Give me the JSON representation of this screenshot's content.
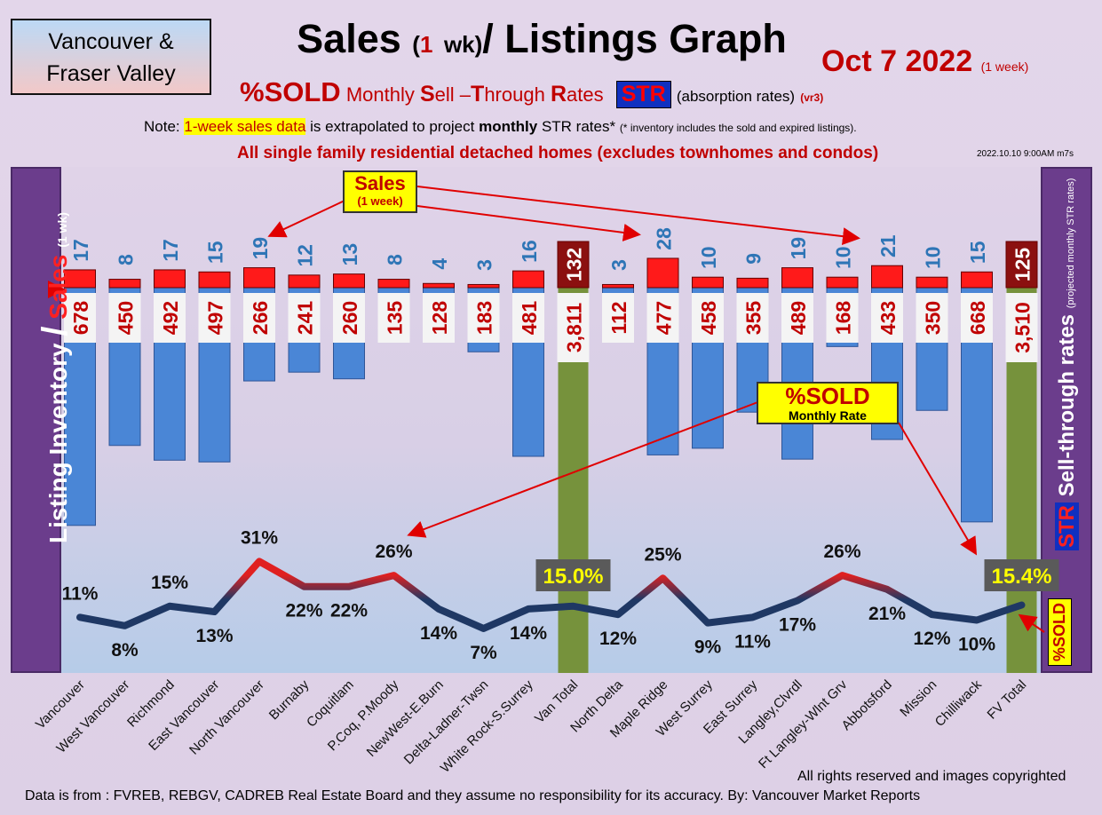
{
  "header": {
    "region_line1": "Vancouver &",
    "region_line2": "Fraser Valley",
    "title_main": "Sales",
    "title_paren_open": "(",
    "title_paren_num": "1",
    "title_paren_wk": "wk)",
    "title_rest": "/ Listings Graph",
    "date": "Oct 7  2022",
    "date_note": "(1 week)",
    "subtitle_sold": "%SOLD",
    "subtitle_monthly": "Monthly",
    "subtitle_sell": "ell –",
    "subtitle_through": "hrough",
    "subtitle_rates": "ates",
    "subtitle_S": "S",
    "subtitle_T": "T",
    "subtitle_R": "R",
    "subtitle_str": "STR",
    "subtitle_abs": "(absorption rates)",
    "subtitle_vr": "(vr3)",
    "note_prefix": "Note:",
    "note_highlight": "1-week sales data",
    "note_mid": "is extrapolated to project",
    "note_monthly": "monthly",
    "note_suffix": "STR rates*",
    "note_small": "(* inventory includes the sold and expired listings).",
    "homes_line": "All single family residential detached homes (excludes townhomes and condos)",
    "stamp": "2022.10.10 9:00AM m7s"
  },
  "side_labels": {
    "left_main": "Listing Inventory",
    "left_slash": "/",
    "left_sales": "Sales",
    "left_small": "(1 wk)",
    "right_str": "STR",
    "right_main": "Sell-through rates",
    "right_small": "(projected monthly STR rates)",
    "sold_tag": "%SOLD"
  },
  "callouts": {
    "sales_title": "Sales",
    "sales_sub": "(1 week)",
    "sold_title": "%SOLD",
    "sold_sub": "Monthly Rate"
  },
  "footer": {
    "source": "Data is from : FVREB, REBGV, CADREB Real Estate Board and they assume no responsibility for its accuracy. By: Vancouver Market Reports",
    "rights": "All rights reserved and  images copyrighted"
  },
  "colors": {
    "sales_bar": "#ff1a1a",
    "sales_total_bar": "#8b1010",
    "listing_bar": "#4a86d6",
    "total_bar": "#76923c",
    "line_low": "#1f3864",
    "line_high": "#e02020",
    "label_blue": "#2e75b6",
    "label_red": "#c00000"
  },
  "chart_data": {
    "type": "bar",
    "categories": [
      "Vancouver",
      "West Vancouver",
      "Richmond",
      "East Vancouver",
      "North Vancouver",
      "Burnaby",
      "Coquitlam",
      "P.Coq, P.Moody",
      "NewWest-E.Burn",
      "Delta-Ladner-Twsn",
      "White Rock-S.Surrey",
      "Van Total",
      "North Delta",
      "Maple Ridge",
      "West Surrey",
      "East Surrey",
      "Langley,Clvrdl",
      "Ft Langley-Wlnt Grv",
      "Abbotsford",
      "Mission",
      "Chilliwack",
      "FV Total"
    ],
    "sales_labels": [
      "17",
      "8",
      "17",
      "15",
      "19",
      "12",
      "13",
      "8",
      "4",
      "3",
      "16",
      "132",
      "3",
      "28",
      "10",
      "9",
      "19",
      "10",
      "21",
      "10",
      "15",
      "125"
    ],
    "sales": [
      17,
      8,
      17,
      15,
      19,
      12,
      13,
      8,
      4,
      3,
      16,
      132,
      3,
      28,
      10,
      9,
      19,
      10,
      21,
      10,
      15,
      125
    ],
    "listing_labels": [
      "678",
      "450",
      "492",
      "497",
      "266",
      "241",
      "260",
      "135",
      "128",
      "183",
      "481",
      "3,811",
      "112",
      "477",
      "458",
      "355",
      "489",
      "168",
      "433",
      "350",
      "668",
      "3,510"
    ],
    "listings": [
      678,
      450,
      492,
      497,
      266,
      241,
      260,
      135,
      128,
      183,
      481,
      3811,
      112,
      477,
      458,
      355,
      489,
      168,
      433,
      350,
      668,
      3510
    ],
    "str_labels": [
      "11%",
      "8%",
      "15%",
      "13%",
      "31%",
      "22%",
      "22%",
      "26%",
      "14%",
      "7%",
      "14%",
      "15.0%",
      "12%",
      "25%",
      "9%",
      "11%",
      "17%",
      "26%",
      "21%",
      "12%",
      "10%",
      "15.4%"
    ],
    "str": [
      11,
      8,
      15,
      13,
      31,
      22,
      22,
      26,
      14,
      7,
      14,
      15.0,
      12,
      25,
      9,
      11,
      17,
      26,
      21,
      12,
      10,
      15.4
    ],
    "total_indices": [
      11,
      21
    ]
  }
}
